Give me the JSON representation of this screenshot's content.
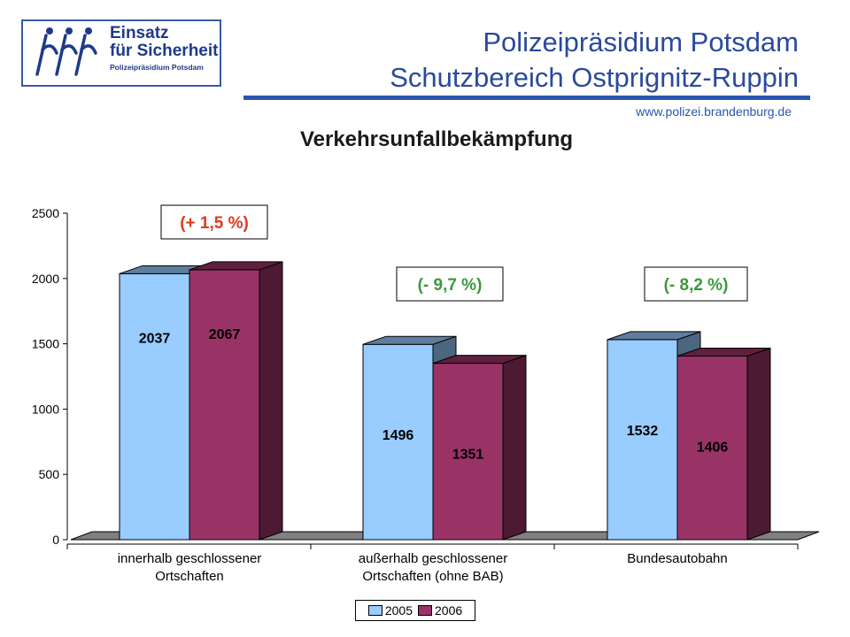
{
  "header": {
    "logo": {
      "line1": "Einsatz",
      "line2": "für Sicherheit",
      "line3": "Polizeipräsidium Potsdam"
    },
    "title_line1": "Polizeipräsidium Potsdam",
    "title_line2": "Schutzbereich Ostprignitz-Ruppin",
    "url": "www.polizei.brandenburg.de"
  },
  "colors": {
    "s2005": "#99ccff",
    "s2006": "#993366",
    "floor": "#808080"
  },
  "chart_data": {
    "type": "bar",
    "title": "Verkehrsunfallbekämpfung",
    "categories": [
      [
        "innerhalb geschlossener",
        "Ortschaften"
      ],
      [
        "außerhalb geschlossener",
        "Ortschaften (ohne BAB)"
      ],
      [
        "Bundesautobahn"
      ]
    ],
    "series": [
      {
        "name": "2005",
        "values": [
          2037,
          1496,
          1532
        ]
      },
      {
        "name": "2006",
        "values": [
          2067,
          1351,
          1406
        ]
      }
    ],
    "annotations": [
      "(+ 1,5 %)",
      "(- 9,7 %)",
      "(- 8,2 %)"
    ],
    "annotation_colors": [
      "#e03a1e",
      "#3a9a3a",
      "#3a9a3a"
    ],
    "ylim": [
      0,
      2500
    ],
    "yticks": [
      0,
      500,
      1000,
      1500,
      2000,
      2500
    ],
    "legend": "bottom",
    "grid": false
  }
}
